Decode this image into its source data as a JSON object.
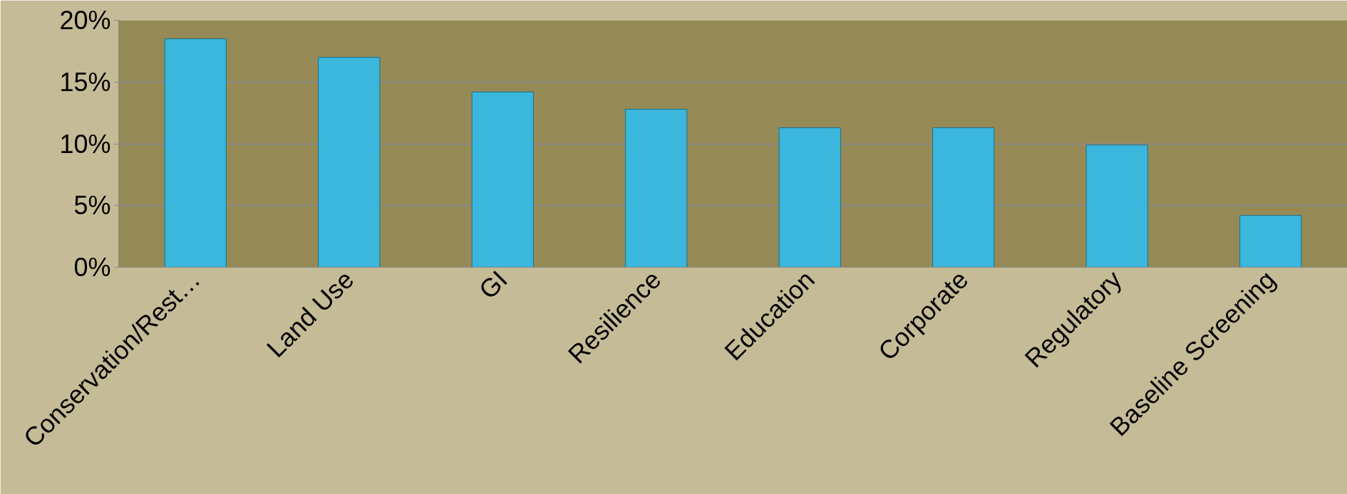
{
  "chart_data": {
    "type": "bar",
    "categories": [
      "Conservation/Rest…",
      "Land Use",
      "GI",
      "Resilience",
      "Education",
      "Corporate",
      "Regulatory",
      "Baseline Screening"
    ],
    "values": [
      18.5,
      17.0,
      14.2,
      12.8,
      11.3,
      11.3,
      9.9,
      4.2
    ],
    "color": "#3bb6dc",
    "ylim": [
      0,
      20
    ],
    "yticks": [
      {
        "value": 0,
        "label": "0%"
      },
      {
        "value": 5,
        "label": "5%"
      },
      {
        "value": 10,
        "label": "10%"
      },
      {
        "value": 15,
        "label": "15%"
      },
      {
        "value": 20,
        "label": "20%"
      }
    ],
    "grid": "y"
  }
}
